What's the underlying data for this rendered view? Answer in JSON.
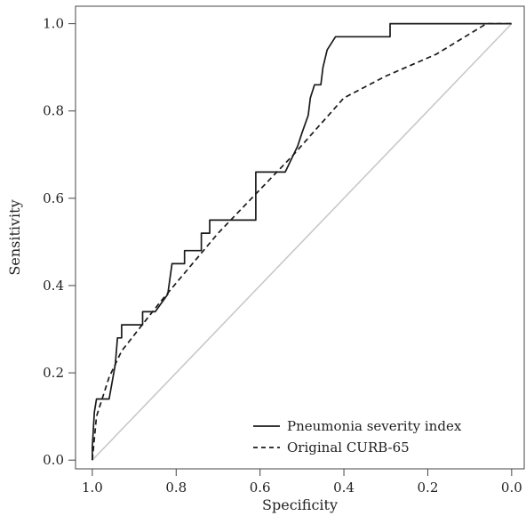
{
  "chart_data": {
    "type": "line",
    "title": "",
    "xlabel": "Specificity",
    "ylabel": "Sensitivity",
    "xlim": [
      1.04,
      -0.03
    ],
    "ylim": [
      -0.02,
      1.04
    ],
    "x_reversed": true,
    "grid": false,
    "legend_position": "bottom-right",
    "x_ticks": [
      1.0,
      0.8,
      0.6,
      0.4,
      0.2,
      0.0
    ],
    "x_tick_labels": [
      "1.0",
      "0.8",
      "0.6",
      "0.4",
      "0.2",
      "0.0"
    ],
    "y_ticks": [
      0.0,
      0.2,
      0.4,
      0.6,
      0.8,
      1.0
    ],
    "y_tick_labels": [
      "0.0",
      "0.2",
      "0.4",
      "0.6",
      "0.8",
      "1.0"
    ],
    "reference_line": {
      "color": "#c8c8c8",
      "from": [
        1.0,
        0.0
      ],
      "to": [
        0.0,
        1.0
      ]
    },
    "series": [
      {
        "name": "Pneumonia severity index",
        "style": "solid",
        "color": "#1a1a1a",
        "x": [
          1.0,
          1.0,
          0.995,
          0.99,
          0.97,
          0.96,
          0.96,
          0.945,
          0.94,
          0.93,
          0.93,
          0.88,
          0.88,
          0.855,
          0.85,
          0.82,
          0.81,
          0.81,
          0.78,
          0.78,
          0.74,
          0.74,
          0.72,
          0.72,
          0.7,
          0.7,
          0.61,
          0.61,
          0.54,
          0.54,
          0.52,
          0.51,
          0.5,
          0.485,
          0.48,
          0.47,
          0.47,
          0.455,
          0.45,
          0.44,
          0.42,
          0.42,
          0.3,
          0.29,
          0.29,
          0.05,
          0.05,
          0.0
        ],
        "y": [
          0.0,
          0.03,
          0.11,
          0.14,
          0.14,
          0.14,
          0.14,
          0.22,
          0.28,
          0.28,
          0.31,
          0.31,
          0.34,
          0.34,
          0.34,
          0.38,
          0.45,
          0.45,
          0.45,
          0.48,
          0.48,
          0.52,
          0.52,
          0.55,
          0.55,
          0.55,
          0.55,
          0.66,
          0.66,
          0.66,
          0.7,
          0.72,
          0.75,
          0.79,
          0.83,
          0.86,
          0.86,
          0.86,
          0.9,
          0.94,
          0.97,
          0.97,
          0.97,
          0.97,
          1.0,
          1.0,
          1.0,
          1.0
        ]
      },
      {
        "name": "Original CURB-65",
        "style": "dashed",
        "color": "#1a1a1a",
        "x": [
          1.0,
          0.99,
          0.96,
          0.93,
          0.84,
          0.7,
          0.52,
          0.4,
          0.3,
          0.18,
          0.06,
          0.0
        ],
        "y": [
          0.0,
          0.1,
          0.19,
          0.25,
          0.36,
          0.52,
          0.7,
          0.83,
          0.88,
          0.93,
          1.0,
          1.0
        ]
      }
    ]
  }
}
